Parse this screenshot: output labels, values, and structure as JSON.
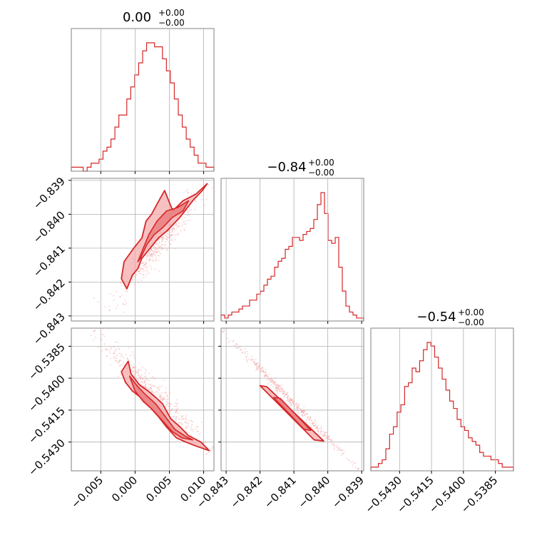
{
  "colors": {
    "accent": "#d62728",
    "fill_light": "#f4a6a7",
    "fill_mid": "#e8797a",
    "grid": "#b0b0b0",
    "axes": "#808080"
  },
  "chart_data": {
    "type": "corner",
    "parameters": [
      {
        "title_value": "0.00",
        "title_plus": "+0.00",
        "title_minus": "−0.00",
        "range": [
          -0.0093,
          0.0115
        ],
        "ticks": [
          -0.005,
          0.0,
          0.005,
          0.01
        ],
        "tick_labels": [
          "−0.005",
          "0.000",
          "0.005",
          "0.010"
        ],
        "hist_counts": [
          1,
          1,
          1,
          0,
          1,
          2,
          2,
          3,
          5,
          6,
          8,
          11,
          14,
          14,
          18,
          21,
          24,
          27,
          30,
          32,
          32,
          31,
          31,
          28,
          25,
          22,
          18,
          14,
          11,
          8,
          6,
          4,
          2,
          2,
          1,
          1
        ]
      },
      {
        "title_value": "−0.84",
        "title_plus": "+0.00",
        "title_minus": "−0.00",
        "range": [
          -0.84315,
          -0.83894
        ],
        "ticks": [
          -0.843,
          -0.842,
          -0.841,
          -0.84,
          -0.839
        ],
        "tick_labels": [
          "−0.843",
          "−0.842",
          "−0.841",
          "−0.840",
          "−0.839"
        ],
        "hist_counts": [
          2,
          1,
          2,
          3,
          3,
          4,
          5,
          5,
          7,
          7,
          9,
          10,
          12,
          14,
          15,
          18,
          20,
          21,
          24,
          25,
          28,
          28,
          27,
          29,
          30,
          31,
          34,
          39,
          43,
          36,
          27,
          26,
          28,
          18,
          10,
          5,
          3,
          2,
          1,
          1
        ]
      },
      {
        "title_value": "−0.54",
        "title_plus": "+0.00",
        "title_minus": "−0.00",
        "range": [
          -0.54435,
          -0.53765
        ],
        "ticks": [
          -0.543,
          -0.5415,
          -0.54,
          -0.5385
        ],
        "tick_labels": [
          "−0.5430",
          "−0.5415",
          "−0.5400",
          "−0.5385"
        ],
        "hist_counts": [
          1,
          1,
          2,
          3,
          6,
          10,
          12,
          16,
          18,
          23,
          24,
          28,
          27,
          30,
          33,
          35,
          34,
          31,
          28,
          25,
          22,
          19,
          17,
          14,
          12,
          11,
          9,
          8,
          7,
          5,
          4,
          4,
          3,
          3,
          2,
          1,
          1,
          1
        ]
      }
    ],
    "pairs": [
      {
        "x_param": 0,
        "y_param": 1,
        "contour_outer": [
          [
            -0.0012,
            -0.8422
          ],
          [
            -0.002,
            -0.8419
          ],
          [
            -0.0016,
            -0.8414
          ],
          [
            -0.0002,
            -0.841
          ],
          [
            0.001,
            -0.8407
          ],
          [
            0.0016,
            -0.8402
          ],
          [
            0.0024,
            -0.84
          ],
          [
            0.0032,
            -0.8397
          ],
          [
            0.0043,
            -0.8393
          ],
          [
            0.0055,
            -0.8399
          ],
          [
            0.007,
            -0.8396
          ],
          [
            0.0089,
            -0.8394
          ],
          [
            0.0105,
            -0.8391
          ],
          [
            0.0098,
            -0.8393
          ],
          [
            0.0084,
            -0.8396
          ],
          [
            0.0065,
            -0.8401
          ],
          [
            0.0046,
            -0.8405
          ],
          [
            0.0034,
            -0.8407
          ],
          [
            0.0022,
            -0.841
          ],
          [
            0.001,
            -0.8413
          ],
          [
            0.0004,
            -0.8416
          ],
          [
            -0.0004,
            -0.8418
          ],
          [
            -0.0008,
            -0.842
          ],
          [
            -0.0012,
            -0.8422
          ]
        ],
        "contour_inner": [
          [
            0.0004,
            -0.8414
          ],
          [
            0.0014,
            -0.8409
          ],
          [
            0.002,
            -0.8406
          ],
          [
            0.0032,
            -0.8402
          ],
          [
            0.0046,
            -0.8399
          ],
          [
            0.0062,
            -0.8398
          ],
          [
            0.0078,
            -0.8396
          ],
          [
            0.007,
            -0.8399
          ],
          [
            0.0054,
            -0.8401
          ],
          [
            0.004,
            -0.8404
          ],
          [
            0.0028,
            -0.8406
          ],
          [
            0.0017,
            -0.8409
          ],
          [
            0.0008,
            -0.8413
          ],
          [
            0.0004,
            -0.8414
          ]
        ],
        "trend": [
          [
            -0.004,
            -0.8428
          ],
          [
            0.0105,
            -0.8391
          ]
        ]
      },
      {
        "x_param": 0,
        "y_param": 2,
        "contour_outer": [
          [
            -0.002,
            -0.5397
          ],
          [
            -0.001,
            -0.5392
          ],
          [
            -0.0006,
            -0.5398
          ],
          [
            0.0006,
            -0.5403
          ],
          [
            0.0019,
            -0.5406
          ],
          [
            0.003,
            -0.5409
          ],
          [
            0.004,
            -0.5412
          ],
          [
            0.0052,
            -0.5419
          ],
          [
            0.0066,
            -0.5423
          ],
          [
            0.0078,
            -0.5427
          ],
          [
            0.0096,
            -0.543
          ],
          [
            0.0108,
            -0.5434
          ],
          [
            0.009,
            -0.5432
          ],
          [
            0.0074,
            -0.543
          ],
          [
            0.006,
            -0.5428
          ],
          [
            0.0046,
            -0.5423
          ],
          [
            0.0034,
            -0.5418
          ],
          [
            0.002,
            -0.5413
          ],
          [
            0.0008,
            -0.5409
          ],
          [
            -0.0004,
            -0.5406
          ],
          [
            -0.0014,
            -0.5402
          ],
          [
            -0.002,
            -0.5397
          ]
        ],
        "contour_inner": [
          [
            -0.0008,
            -0.5399
          ],
          [
            0.0004,
            -0.5404
          ],
          [
            0.0016,
            -0.5408
          ],
          [
            0.003,
            -0.5412
          ],
          [
            0.0044,
            -0.5418
          ],
          [
            0.0058,
            -0.5424
          ],
          [
            0.0072,
            -0.5427
          ],
          [
            0.0084,
            -0.5429
          ],
          [
            0.0068,
            -0.5428
          ],
          [
            0.0054,
            -0.5425
          ],
          [
            0.004,
            -0.542
          ],
          [
            0.0026,
            -0.5415
          ],
          [
            0.0012,
            -0.5411
          ],
          [
            0.0,
            -0.5406
          ],
          [
            -0.0008,
            -0.5399
          ]
        ],
        "trend": [
          [
            -0.006,
            -0.5378
          ],
          [
            0.011,
            -0.5434
          ]
        ]
      },
      {
        "x_param": 1,
        "y_param": 2,
        "contour_outer": [
          [
            -0.842,
            -0.54035
          ],
          [
            -0.8404,
            -0.5429
          ],
          [
            -0.84012,
            -0.54295
          ],
          [
            -0.8418,
            -0.5404
          ],
          [
            -0.842,
            -0.54035
          ]
        ],
        "contour_inner": [
          [
            -0.8416,
            -0.5409
          ],
          [
            -0.8407,
            -0.5424
          ],
          [
            -0.8405,
            -0.54245
          ],
          [
            -0.8414,
            -0.54095
          ],
          [
            -0.8416,
            -0.5409
          ]
        ],
        "trend": [
          [
            -0.8431,
            -0.5378
          ],
          [
            -0.8391,
            -0.54425
          ]
        ]
      }
    ]
  }
}
